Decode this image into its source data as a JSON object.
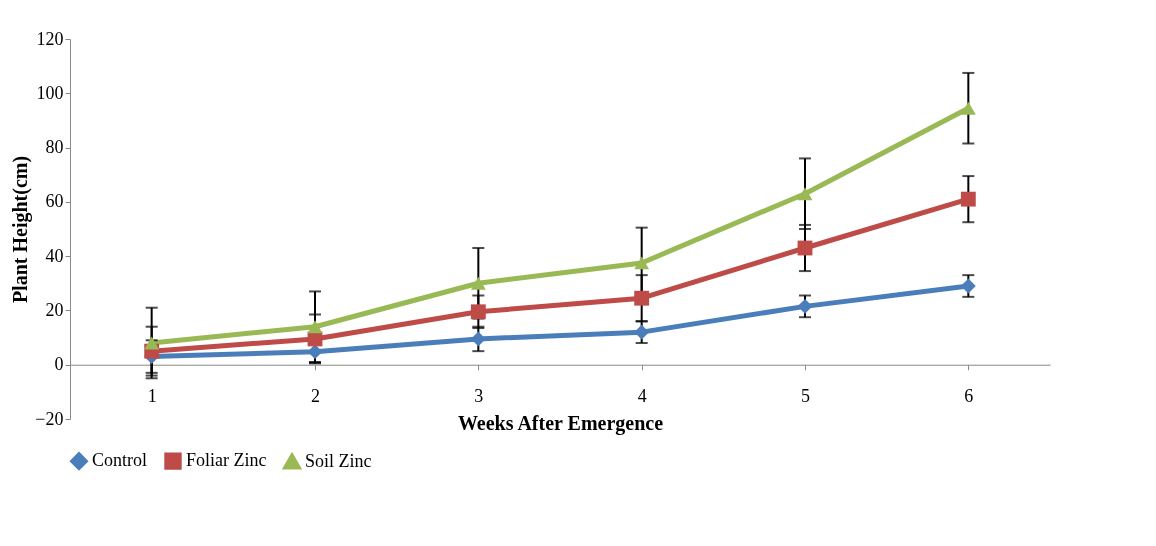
{
  "chart_data": {
    "type": "line",
    "xlabel": "Weeks After Emergence",
    "ylabel": "Plant Height(cm)",
    "categories": [
      "1",
      "2",
      "3",
      "4",
      "5",
      "6"
    ],
    "ylim": [
      -20,
      120
    ],
    "yticks": [
      -20,
      0,
      20,
      40,
      60,
      80,
      100,
      120
    ],
    "grid": false,
    "legend": "bottom",
    "series": [
      {
        "name": "Control",
        "color": "#4a7ebb",
        "marker": "diamond",
        "values": [
          3,
          4.8,
          9.5,
          12,
          21.5,
          29
        ],
        "errors": [
          6,
          4,
          4.5,
          4,
          4,
          4
        ]
      },
      {
        "name": "Foliar Zinc",
        "color": "#be4b48",
        "marker": "square",
        "values": [
          5,
          9.5,
          19.5,
          24.5,
          43,
          61
        ],
        "errors": [
          9,
          9,
          6,
          8.5,
          8.5,
          8.5
        ]
      },
      {
        "name": "Soil Zinc",
        "color": "#98b954",
        "marker": "triangle",
        "values": [
          8,
          14,
          30,
          37.5,
          63,
          94.5
        ],
        "errors": [
          13,
          13,
          13,
          13,
          13,
          13
        ]
      }
    ]
  }
}
